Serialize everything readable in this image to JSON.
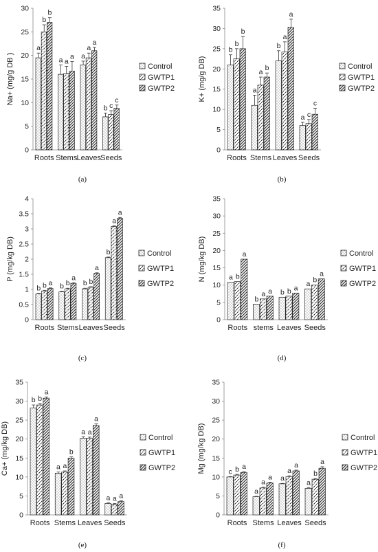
{
  "chart_data": [
    {
      "type": "bar",
      "panel_label": "(a)",
      "ylabel": "Na+ (mg/g DB )",
      "ylim": [
        0,
        30
      ],
      "yticks": [
        0,
        5,
        10,
        15,
        20,
        25,
        30
      ],
      "categories": [
        "Roots",
        "Stems",
        "Leaves",
        "Seeds"
      ],
      "series": [
        {
          "name": "Control",
          "values": [
            19.5,
            16.0,
            18.0,
            7.0
          ],
          "errors": [
            1.0,
            2.0,
            0.8,
            0.8
          ],
          "letters": [
            "a",
            "a",
            "a",
            "b"
          ]
        },
        {
          "name": "GWTP1",
          "values": [
            25.0,
            16.2,
            19.5,
            7.5
          ],
          "errors": [
            1.5,
            1.5,
            1.0,
            0.8
          ],
          "letters": [
            "b",
            "a",
            "a",
            "c"
          ]
        },
        {
          "name": "GWTP2",
          "values": [
            27.0,
            16.7,
            21.0,
            8.8
          ],
          "errors": [
            1.0,
            2.0,
            0.7,
            0.7
          ],
          "letters": [
            "b",
            "a",
            "a",
            "c"
          ]
        }
      ]
    },
    {
      "type": "bar",
      "panel_label": "(b)",
      "ylabel": "K+ (mg/g DB)",
      "ylim": [
        0,
        35
      ],
      "yticks": [
        0,
        5,
        10,
        15,
        20,
        25,
        30,
        35
      ],
      "categories": [
        "Roots",
        "Stems",
        "Leaves",
        "Seeds"
      ],
      "series": [
        {
          "name": "Control",
          "values": [
            21.0,
            11.0,
            22.0,
            6.0
          ],
          "errors": [
            2.5,
            2.5,
            2.5,
            0.8
          ],
          "letters": [
            "b",
            "a",
            "b",
            "a"
          ]
        },
        {
          "name": "GWTP1",
          "values": [
            22.5,
            16.0,
            24.2,
            6.5
          ],
          "errors": [
            2.5,
            2.0,
            2.5,
            1.0
          ],
          "letters": [
            "b",
            "a",
            "a",
            "c"
          ]
        },
        {
          "name": "GWTP2",
          "values": [
            25.0,
            18.0,
            30.3,
            8.8
          ],
          "errors": [
            3.0,
            1.0,
            2.0,
            1.5
          ],
          "letters": [
            "b",
            "b",
            "a",
            "c"
          ]
        }
      ]
    },
    {
      "type": "bar",
      "panel_label": "(c)",
      "ylabel": "P (mg/kg DB)",
      "ylim": [
        0,
        4
      ],
      "yticks": [
        0,
        0.5,
        1,
        1.5,
        2,
        2.5,
        3,
        3.5,
        4
      ],
      "categories": [
        "Roots",
        "Stems",
        "Leaves",
        "Seeds"
      ],
      "series": [
        {
          "name": "Control",
          "values": [
            0.85,
            0.92,
            1.02,
            2.05
          ],
          "errors": [
            0.02,
            0.02,
            0.02,
            0.02
          ],
          "letters": [
            "b",
            "b",
            "b",
            "b"
          ]
        },
        {
          "name": "GWTP1",
          "values": [
            0.95,
            1.02,
            1.07,
            3.08
          ],
          "errors": [
            0.02,
            0.02,
            0.02,
            0.02
          ],
          "letters": [
            "b",
            "b",
            "b",
            "a"
          ]
        },
        {
          "name": "GWTP2",
          "values": [
            1.03,
            1.2,
            1.53,
            3.35
          ],
          "errors": [
            0.02,
            0.02,
            0.02,
            0.03
          ],
          "letters": [
            "a",
            "a",
            "a",
            "a"
          ]
        }
      ]
    },
    {
      "type": "bar",
      "panel_label": "(d)",
      "ylabel": "N (mg/kg DB)",
      "ylim": [
        0,
        35
      ],
      "yticks": [
        0,
        5,
        10,
        15,
        20,
        25,
        30,
        35
      ],
      "categories": [
        "Roots",
        "stems",
        "Leaves",
        "Seeds"
      ],
      "series": [
        {
          "name": "Control",
          "values": [
            10.8,
            4.5,
            6.5,
            8.9
          ],
          "errors": [
            0,
            0,
            0,
            0
          ],
          "letters": [
            "a",
            "b",
            "b",
            "a"
          ]
        },
        {
          "name": "GWTP1",
          "values": [
            11.0,
            6.0,
            6.8,
            10.0
          ],
          "errors": [
            0,
            0,
            0,
            0
          ],
          "letters": [
            "b",
            "a",
            "b",
            "b"
          ]
        },
        {
          "name": "GWTP2",
          "values": [
            17.5,
            6.8,
            7.7,
            11.8
          ],
          "errors": [
            0,
            0,
            0,
            0
          ],
          "letters": [
            "a",
            "a",
            "a",
            "a"
          ]
        }
      ]
    },
    {
      "type": "bar",
      "panel_label": "(e)",
      "ylabel": "Ca+ (mg/kg DB)",
      "ylim": [
        0,
        35
      ],
      "yticks": [
        0,
        5,
        10,
        15,
        20,
        25,
        30,
        35
      ],
      "categories": [
        "Roots",
        "Stems",
        "Leaves",
        "Seeds"
      ],
      "series": [
        {
          "name": "Control",
          "values": [
            28.2,
            11.0,
            20.2,
            3.0
          ],
          "errors": [
            0.8,
            0.3,
            0.4,
            0.2
          ],
          "letters": [
            "b",
            "a",
            "a",
            "a"
          ]
        },
        {
          "name": "GWTP1",
          "values": [
            29.0,
            11.3,
            20.2,
            2.8
          ],
          "errors": [
            0.4,
            0.3,
            0.3,
            0.2
          ],
          "letters": [
            "b",
            "a",
            "a",
            "a"
          ]
        },
        {
          "name": "GWTP2",
          "values": [
            30.8,
            15.0,
            23.6,
            3.5
          ],
          "errors": [
            0.3,
            0.3,
            0.4,
            0.2
          ],
          "letters": [
            "a",
            "b",
            "a",
            "a"
          ]
        }
      ]
    },
    {
      "type": "bar",
      "panel_label": "(f)",
      "ylabel": "Mg (mg/kg DB)",
      "ylim": [
        0,
        35
      ],
      "yticks": [
        0,
        5,
        10,
        15,
        20,
        25,
        30,
        35
      ],
      "categories": [
        "Roots",
        "Stems",
        "Leaves",
        "Seeds"
      ],
      "series": [
        {
          "name": "Control",
          "values": [
            10.0,
            4.8,
            8.2,
            7.0
          ],
          "errors": [
            0.1,
            0.1,
            0.1,
            0.2
          ],
          "letters": [
            "c",
            "a",
            "a",
            "a"
          ]
        },
        {
          "name": "GWTP1",
          "values": [
            10.5,
            7.1,
            10.1,
            9.4
          ],
          "errors": [
            0.2,
            0.2,
            0.2,
            0.2
          ],
          "letters": [
            "b",
            "a",
            "a",
            "b"
          ]
        },
        {
          "name": "GWTP2",
          "values": [
            11.2,
            8.4,
            11.6,
            12.3
          ],
          "errors": [
            0.2,
            0.2,
            0.2,
            0.4
          ],
          "letters": [
            "a",
            "a",
            "a",
            "a"
          ]
        }
      ]
    }
  ]
}
